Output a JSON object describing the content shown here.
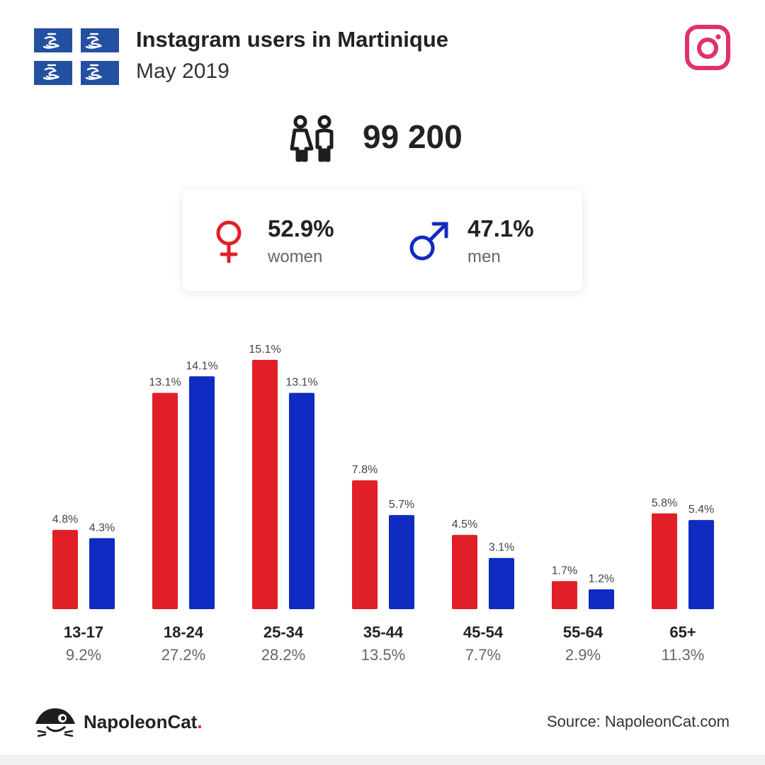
{
  "header": {
    "title": "Instagram users in Martinique",
    "subtitle": "May 2019"
  },
  "total": {
    "value": "99 200"
  },
  "gender": {
    "women": {
      "pct": "52.9%",
      "label": "women"
    },
    "men": {
      "pct": "47.1%",
      "label": "men"
    }
  },
  "colors": {
    "women": "#e01f27",
    "men": "#0f2bc2",
    "instagram": "#e1306c",
    "flag": "#2350a0"
  },
  "chart_data": {
    "type": "bar",
    "categories": [
      "13-17",
      "18-24",
      "25-34",
      "35-44",
      "45-54",
      "55-64",
      "65+"
    ],
    "category_totals": [
      "9.2%",
      "27.2%",
      "28.2%",
      "13.5%",
      "7.7%",
      "2.9%",
      "11.3%"
    ],
    "series": [
      {
        "values": [
          4.8,
          13.1,
          15.1,
          7.8,
          4.5,
          1.7,
          5.8
        ],
        "labels": [
          "4.8%",
          "13.1%",
          "15.1%",
          "7.8%",
          "4.5%",
          "1.7%",
          "5.8%"
        ]
      },
      {
        "values": [
          4.3,
          14.1,
          13.1,
          5.7,
          3.1,
          1.2,
          5.4
        ],
        "labels": [
          "4.3%",
          "14.1%",
          "13.1%",
          "5.7%",
          "3.1%",
          "1.2%",
          "5.4%"
        ]
      }
    ],
    "ylim": [
      0,
      15.1
    ],
    "grid": false
  },
  "footer": {
    "brand": "NapoleonCat",
    "brand_dot": ".",
    "source": "Source: NapoleonCat.com"
  }
}
